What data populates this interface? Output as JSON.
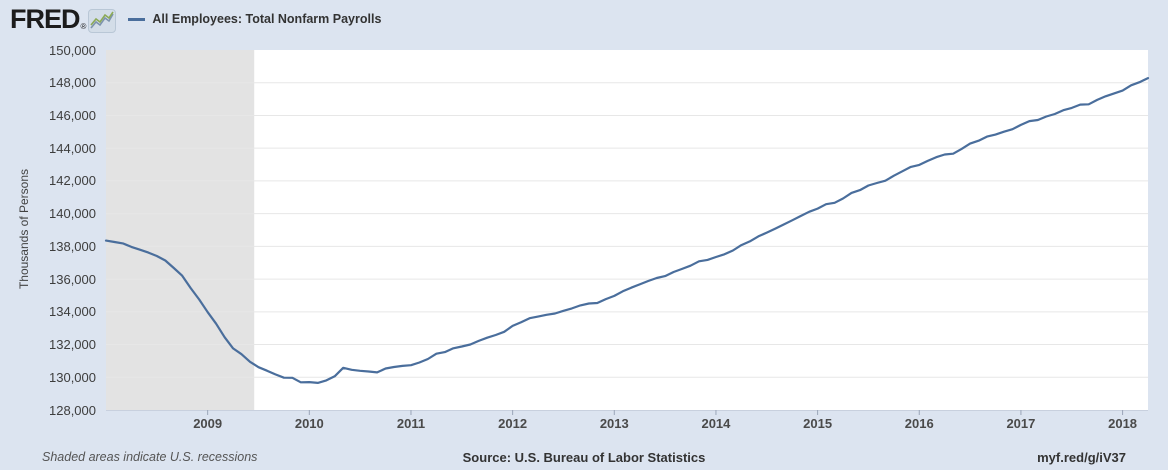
{
  "header": {
    "logo": "FRED",
    "registered": "®",
    "series_legend": "All Employees: Total Nonfarm Payrolls"
  },
  "footer": {
    "left_note": "Shaded areas indicate U.S. recessions",
    "source": "Source: U.S. Bureau of Labor Statistics",
    "short_url": "myf.red/g/iV37"
  },
  "colors": {
    "page_bg": "#dce4f0",
    "plot_bg": "#ffffff",
    "recession_band": "#e3e3e3",
    "gridline": "#e7e7e7",
    "axis_line": "#c8d0de",
    "tick": "#9aa5b8",
    "series_line": "#4a6e9c"
  },
  "chart_data": {
    "type": "line",
    "title": "All Employees: Total Nonfarm Payrolls",
    "ylabel": "Thousands of Persons",
    "xlabel": "",
    "grid": true,
    "legend_position": "top-left",
    "ylim": [
      128000,
      150000
    ],
    "y_tick_step": 2000,
    "y_tick_labels": [
      "150,000",
      "148,000",
      "146,000",
      "144,000",
      "142,000",
      "140,000",
      "138,000",
      "136,000",
      "134,000",
      "132,000",
      "130,000",
      "128,000"
    ],
    "x_tick_labels": [
      "2009",
      "2010",
      "2011",
      "2012",
      "2013",
      "2014",
      "2015",
      "2016",
      "2017",
      "2018"
    ],
    "xlim_decimal_years": [
      2008.0,
      2018.25
    ],
    "frequency": "monthly",
    "start": "2008-01",
    "end": "2018-04",
    "recession_band_decimal_years": [
      2008.0,
      2009.458
    ],
    "values": [
      138350,
      138265,
      138180,
      137965,
      137795,
      137620,
      137410,
      137135,
      136680,
      136205,
      135450,
      134755,
      133975,
      133275,
      132450,
      131765,
      131410,
      130945,
      130615,
      130400,
      130175,
      129975,
      129970,
      129690,
      129705,
      129655,
      129810,
      130060,
      130580,
      130455,
      130395,
      130355,
      130295,
      130535,
      130625,
      130695,
      130740,
      130905,
      131115,
      131440,
      131540,
      131770,
      131880,
      132000,
      132220,
      132420,
      132585,
      132780,
      133140,
      133365,
      133610,
      133705,
      133815,
      133900,
      134060,
      134210,
      134395,
      134510,
      134540,
      134775,
      134975,
      135255,
      135475,
      135675,
      135885,
      136065,
      136180,
      136435,
      136620,
      136820,
      137090,
      137175,
      137350,
      137515,
      137745,
      138075,
      138305,
      138610,
      138840,
      139085,
      139335,
      139595,
      139855,
      140110,
      140310,
      140575,
      140660,
      140925,
      141270,
      141440,
      141720,
      141870,
      142015,
      142320,
      142585,
      142855,
      142980,
      143220,
      143450,
      143615,
      143660,
      143955,
      144280,
      144460,
      144705,
      144830,
      145005,
      145160,
      145420,
      145655,
      145725,
      145935,
      146090,
      146320,
      146460,
      146665,
      146680,
      146950,
      147170,
      147345,
      147520,
      147845,
      148030,
      148280
    ]
  }
}
